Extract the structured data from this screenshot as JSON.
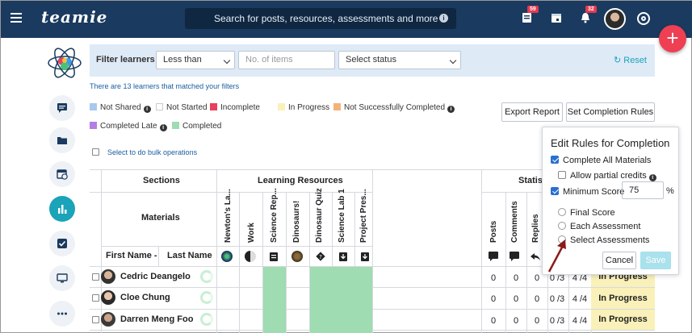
{
  "header": {
    "logo": "teamie",
    "search_placeholder": "Search for posts, resources, assessments and more",
    "posts_badge": "59",
    "notifications_badge": "32"
  },
  "filter": {
    "label": "Filter learners",
    "comparison": "Less than",
    "items_placeholder": "No. of items",
    "status_placeholder": "Select status",
    "reset": "Reset"
  },
  "matched_text": "There are 13 learners that matched your filters",
  "legend": {
    "not_shared": "Not Shared",
    "not_started": "Not Started",
    "incomplete": "Incomplete",
    "in_progress": "In Progress",
    "not_successfully_completed": "Not Successfully Completed",
    "completed_late": "Completed Late",
    "completed": "Completed"
  },
  "colors": {
    "not_shared": "#a8c8ee",
    "not_started": "#ffffff",
    "incomplete": "#e8405e",
    "in_progress": "#f9f1b9",
    "not_successfully_completed": "#f3b27a",
    "completed_late": "#b57ee0",
    "completed": "#9fdcb1",
    "accent": "#1aa3b9",
    "topbar": "#1a3a5f"
  },
  "buttons": {
    "export": "Export Report",
    "set_rules": "Set Completion Rules"
  },
  "bulk_text": "Select to do bulk operations",
  "table": {
    "sections_label": "Sections",
    "learning_resources_label": "Learning Resources",
    "statistics_label": "Statist",
    "materials_label": "Materials",
    "first_name": "First Name",
    "last_name": "Last Name",
    "materials": [
      "Newton's La...",
      "Work",
      "Science Rep...",
      "Dinosaurs!",
      "Dinosaur Quiz",
      "Science Lab 1",
      "Project Pres..."
    ],
    "stat_cols": [
      "Posts",
      "Comments",
      "Replies"
    ],
    "rows": [
      {
        "name": "Cedric Deangelo",
        "posts": "0",
        "comments": "0",
        "replies": "0",
        "assess": "0 /3",
        "materials": "4 /4",
        "status": "In Progress"
      },
      {
        "name": "Cloe Chung",
        "posts": "0",
        "comments": "0",
        "replies": "0",
        "assess": "0 /3",
        "materials": "4 /4",
        "status": "In Progress"
      },
      {
        "name": "Darren Meng Foo",
        "posts": "0",
        "comments": "0",
        "replies": "0",
        "assess": "0 /3",
        "materials": "4 /4",
        "status": "In Progress"
      }
    ]
  },
  "popover": {
    "title": "Edit Rules for Completion",
    "complete_all": "Complete All Materials",
    "allow_partial": "Allow partial credits",
    "minimum_score": "Minimum Score",
    "score_value": "75",
    "percent": "%",
    "final_score": "Final Score",
    "each_assessment": "Each Assessment",
    "select_assessments": "Select Assessments",
    "cancel": "Cancel",
    "save": "Save"
  }
}
